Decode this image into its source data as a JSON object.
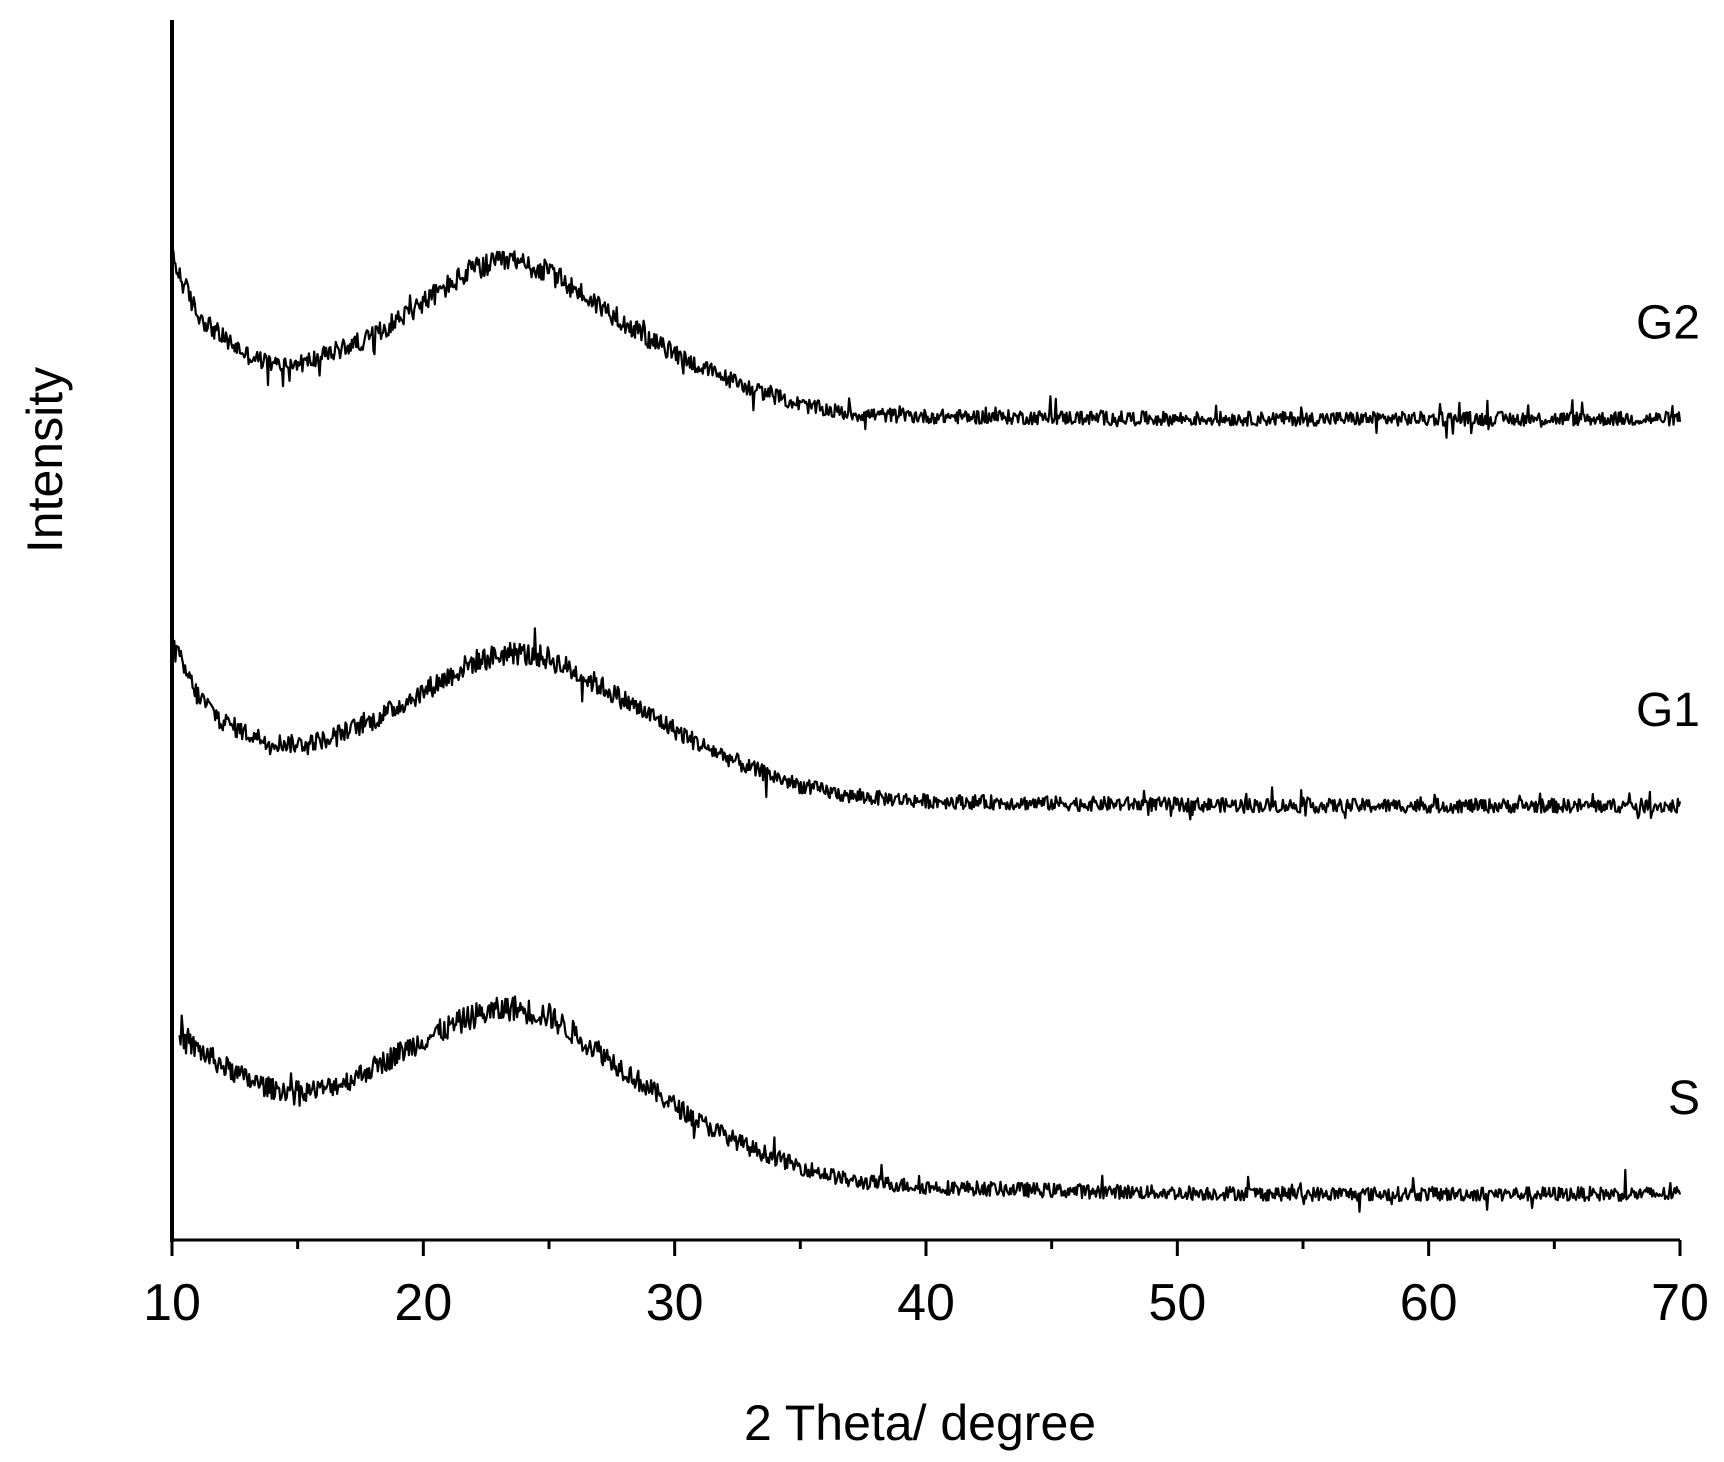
{
  "chart_data": {
    "type": "line",
    "title": "",
    "xlabel": "2 Theta/ degree",
    "ylabel": "Intensity",
    "xlim": [
      10,
      70
    ],
    "ylim": [
      0,
      1
    ],
    "x_ticks": [
      10,
      20,
      30,
      40,
      50,
      60,
      70
    ],
    "x_minor_step": 5,
    "y_ticks_shown": false,
    "grid": false,
    "legend": "inline labels at right end of each trace",
    "line_color": "#000000",
    "series": [
      {
        "name": "G2",
        "x": [
          10,
          11,
          12,
          13,
          14,
          15,
          16,
          18,
          20,
          22,
          23.5,
          25,
          27,
          29,
          31,
          33,
          35,
          37,
          40,
          45,
          50,
          55,
          60,
          65,
          70
        ],
        "y": [
          0.832,
          0.785,
          0.765,
          0.75,
          0.742,
          0.742,
          0.749,
          0.766,
          0.795,
          0.823,
          0.83,
          0.82,
          0.792,
          0.763,
          0.74,
          0.722,
          0.708,
          0.7,
          0.698,
          0.697,
          0.696,
          0.696,
          0.696,
          0.696,
          0.696
        ]
      },
      {
        "name": "G1",
        "x": [
          10,
          11,
          12,
          13,
          14,
          15,
          16,
          18,
          20,
          22,
          23.5,
          25,
          27,
          29,
          31,
          33,
          35,
          37,
          40,
          45,
          50,
          55,
          60,
          65,
          70
        ],
        "y": [
          0.505,
          0.462,
          0.44,
          0.429,
          0.422,
          0.42,
          0.424,
          0.44,
          0.465,
          0.49,
          0.498,
          0.493,
          0.47,
          0.445,
          0.42,
          0.4,
          0.385,
          0.376,
          0.372,
          0.37,
          0.369,
          0.368,
          0.368,
          0.368,
          0.368
        ]
      },
      {
        "name": "S",
        "x": [
          10,
          10.5,
          11,
          12,
          13,
          14,
          15,
          16,
          17,
          18,
          20,
          22,
          23.5,
          25,
          27,
          29,
          31,
          33,
          35,
          37,
          40,
          45,
          50,
          55,
          60,
          65,
          70
        ],
        "y": [
          0.175,
          0.168,
          0.162,
          0.148,
          0.136,
          0.128,
          0.126,
          0.128,
          0.135,
          0.146,
          0.17,
          0.19,
          0.197,
          0.19,
          0.16,
          0.128,
          0.1,
          0.078,
          0.062,
          0.05,
          0.045,
          0.042,
          0.04,
          0.039,
          0.039,
          0.039,
          0.039
        ]
      }
    ]
  }
}
